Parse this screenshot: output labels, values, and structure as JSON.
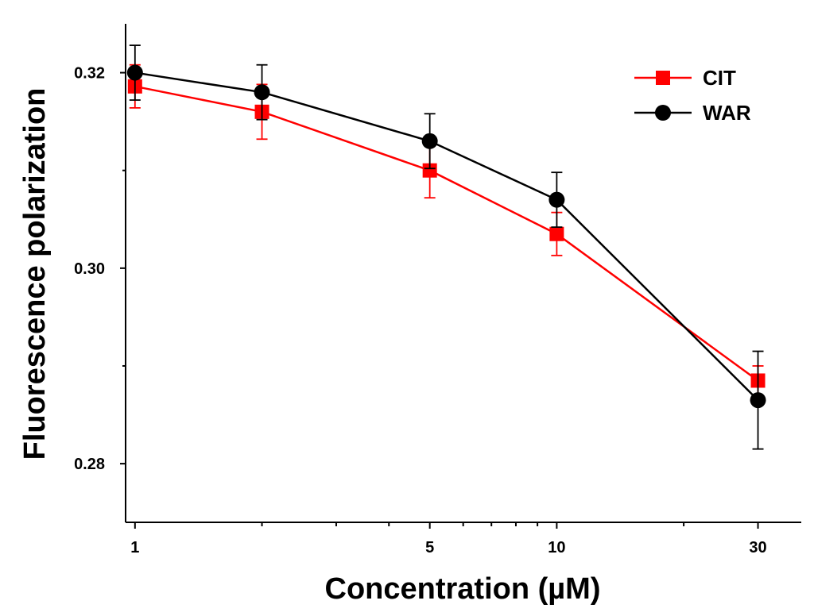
{
  "chart_data": {
    "type": "line",
    "title": "",
    "xlabel": "Concentration (µM)",
    "ylabel": "Fluorescence polarization",
    "xscale": "log",
    "xlim": [
      0.95,
      38
    ],
    "ylim": [
      0.274,
      0.325
    ],
    "xticks": [
      1,
      5,
      10,
      30
    ],
    "xtick_labels": [
      "1",
      "5",
      "10",
      "30"
    ],
    "xminor_ticks": [
      2,
      3,
      4,
      6,
      7,
      8,
      9,
      20
    ],
    "yticks": [
      0.28,
      0.3,
      0.32
    ],
    "ytick_labels": [
      "0.28",
      "0.30",
      "0.32"
    ],
    "legend_position": "top-right",
    "grid": false,
    "series": [
      {
        "name": "CIT",
        "color": "#ff0000",
        "marker": "square",
        "x": [
          1,
          2,
          5,
          10,
          30
        ],
        "y": [
          0.3186,
          0.316,
          0.31,
          0.3035,
          0.2885
        ],
        "error": [
          0.0022,
          0.0028,
          0.0028,
          0.0022,
          0.0015
        ]
      },
      {
        "name": "WAR",
        "color": "#000000",
        "marker": "circle",
        "x": [
          1,
          2,
          5,
          10,
          30
        ],
        "y": [
          0.32,
          0.318,
          0.313,
          0.307,
          0.2865
        ],
        "error": [
          0.0028,
          0.0028,
          0.0028,
          0.0028,
          0.005
        ]
      }
    ]
  }
}
